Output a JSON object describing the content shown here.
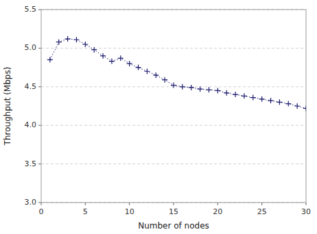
{
  "chart_data": {
    "type": "line",
    "x": [
      1,
      2,
      3,
      4,
      5,
      6,
      7,
      8,
      9,
      10,
      11,
      12,
      13,
      14,
      15,
      16,
      17,
      18,
      19,
      20,
      21,
      22,
      23,
      24,
      25,
      26,
      27,
      28,
      29,
      30
    ],
    "values": [
      4.85,
      5.08,
      5.12,
      5.11,
      5.05,
      4.98,
      4.9,
      4.83,
      4.87,
      4.8,
      4.75,
      4.7,
      4.65,
      4.59,
      4.52,
      4.5,
      4.49,
      4.47,
      4.46,
      4.45,
      4.42,
      4.4,
      4.38,
      4.36,
      4.34,
      4.32,
      4.3,
      4.28,
      4.25,
      4.22
    ],
    "color": "#1a1a6e",
    "marker": "plus",
    "line_style": "dotted",
    "xlabel": "Number of nodes",
    "ylabel": "Throughput (Mbps)",
    "xlim": [
      0,
      30
    ],
    "ylim": [
      3.0,
      5.5
    ],
    "xticks": [
      0,
      5,
      10,
      15,
      20,
      25,
      30
    ],
    "yticks": [
      {
        "value": 3.0,
        "label": "3.0"
      },
      3.5,
      {
        "value": 4.0,
        "label": "4.0"
      },
      4.5,
      {
        "value": 5.0,
        "label": "5.0"
      },
      5.5
    ],
    "grid": "y"
  }
}
